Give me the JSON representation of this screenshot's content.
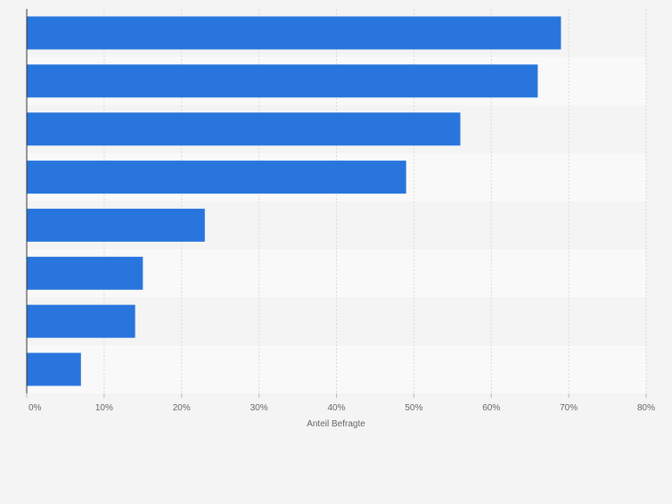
{
  "chart_data": {
    "type": "bar",
    "orientation": "horizontal",
    "categories": [
      "",
      "",
      "",
      "",
      "",
      "",
      "",
      ""
    ],
    "values": [
      69,
      66,
      56,
      49,
      23,
      15,
      14,
      7
    ],
    "xlim": [
      0,
      80
    ],
    "xticks": [
      0,
      10,
      20,
      30,
      40,
      50,
      60,
      70,
      80
    ],
    "tick_labels": [
      "0%",
      "10%",
      "20%",
      "30%",
      "40%",
      "50%",
      "60%",
      "70%",
      "80%"
    ],
    "xlabel": "Anteil Befragte",
    "ylabel": "",
    "title": "",
    "grid": true,
    "legend": "none"
  },
  "colors": {
    "bar": "#2876dd",
    "background": "#f4f4f4",
    "band_light": "#f9f9f9",
    "band_dark": "#f4f4f4",
    "grid": "#d9d9d9",
    "axis": "#333333",
    "tick_text": "#666666"
  }
}
